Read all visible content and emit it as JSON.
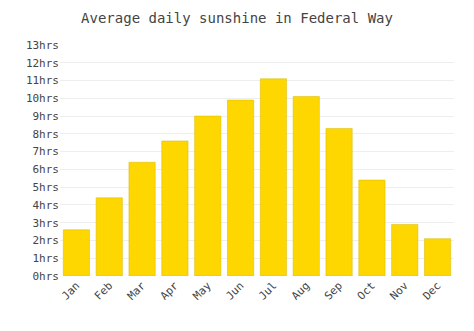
{
  "chart_data": {
    "type": "bar",
    "title": "Average daily sunshine in Federal Way",
    "categories": [
      "Jan",
      "Feb",
      "Mar",
      "Apr",
      "May",
      "Jun",
      "Jul",
      "Aug",
      "Sep",
      "Oct",
      "Nov",
      "Dec"
    ],
    "values": [
      2.6,
      4.4,
      6.4,
      7.6,
      9.0,
      9.9,
      11.1,
      10.1,
      8.3,
      5.4,
      2.9,
      2.1
    ],
    "color": "#FFD700",
    "ylim": [
      0,
      13
    ],
    "yticks": [
      {
        "value": 0,
        "label": "0hrs"
      },
      {
        "value": 1,
        "label": "1hrs"
      },
      {
        "value": 2,
        "label": "2hrs"
      },
      {
        "value": 3,
        "label": "3hrs"
      },
      {
        "value": 4,
        "label": "4hrs"
      },
      {
        "value": 5,
        "label": "5hrs"
      },
      {
        "value": 6,
        "label": "6hrs"
      },
      {
        "value": 7,
        "label": "7hrs"
      },
      {
        "value": 8,
        "label": "8hrs"
      },
      {
        "value": 9,
        "label": "9hrs"
      },
      {
        "value": 10,
        "label": "10hrs"
      },
      {
        "value": 11,
        "label": "11hrs"
      },
      {
        "value": 12,
        "label": "12hrs"
      },
      {
        "value": 13,
        "label": "13hrs"
      }
    ],
    "grid": true
  }
}
